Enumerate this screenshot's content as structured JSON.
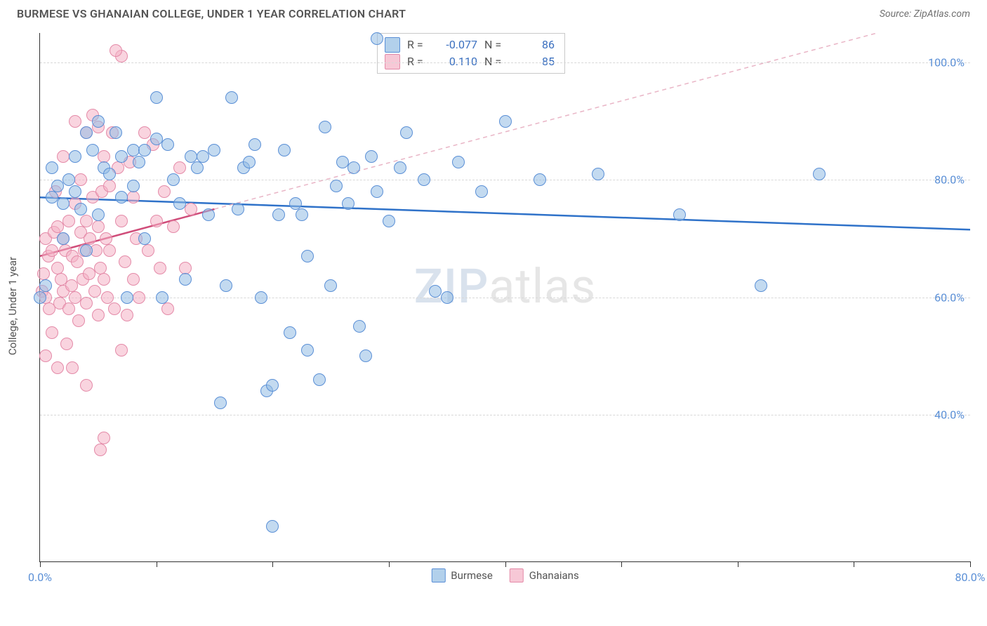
{
  "header": {
    "title": "BURMESE VS GHANAIAN COLLEGE, UNDER 1 YEAR CORRELATION CHART",
    "source": "Source: ZipAtlas.com"
  },
  "chart": {
    "type": "scatter",
    "y_label": "College, Under 1 year",
    "xlim": [
      0,
      80
    ],
    "ylim": [
      15,
      105
    ],
    "x_ticks": [
      0,
      10,
      20,
      30,
      40,
      50,
      60,
      70,
      80
    ],
    "x_tick_labels": {
      "0": "0.0%",
      "80": "80.0%"
    },
    "y_ticks": [
      40,
      60,
      80,
      100
    ],
    "y_tick_labels": {
      "40": "40.0%",
      "60": "60.0%",
      "80": "80.0%",
      "100": "100.0%"
    },
    "grid_color": "#d8d8d8",
    "background_color": "#ffffff",
    "axis_color": "#333333",
    "watermark": {
      "zip": "ZIP",
      "atlas": "atlas"
    },
    "series": [
      {
        "name": "Burmese",
        "color_fill": "rgba(146,188,227,0.55)",
        "color_stroke": "#5a8fd6",
        "marker_size": 18,
        "regression": {
          "y_at_x0": 77,
          "y_at_x80": 71.5,
          "stroke": "#2f72c9",
          "width": 2.5,
          "dash": null
        },
        "r": "-0.077",
        "n": "86",
        "points": [
          [
            0,
            60
          ],
          [
            0.5,
            62
          ],
          [
            1,
            77
          ],
          [
            1,
            82
          ],
          [
            1.5,
            79
          ],
          [
            2,
            70
          ],
          [
            2,
            76
          ],
          [
            2.5,
            80
          ],
          [
            3,
            78
          ],
          [
            3,
            84
          ],
          [
            3.5,
            75
          ],
          [
            4,
            68
          ],
          [
            4,
            88
          ],
          [
            4.5,
            85
          ],
          [
            5,
            90
          ],
          [
            5,
            74
          ],
          [
            5.5,
            82
          ],
          [
            6,
            81
          ],
          [
            6.5,
            88
          ],
          [
            7,
            77
          ],
          [
            7,
            84
          ],
          [
            7.5,
            60
          ],
          [
            8,
            79
          ],
          [
            8,
            85
          ],
          [
            8.5,
            83
          ],
          [
            9,
            70
          ],
          [
            9,
            85
          ],
          [
            10,
            94
          ],
          [
            10,
            87
          ],
          [
            10.5,
            60
          ],
          [
            11,
            86
          ],
          [
            11.5,
            80
          ],
          [
            12,
            76
          ],
          [
            12.5,
            63
          ],
          [
            13,
            84
          ],
          [
            13.5,
            82
          ],
          [
            14,
            84
          ],
          [
            14.5,
            74
          ],
          [
            15,
            85
          ],
          [
            15.5,
            42
          ],
          [
            16,
            62
          ],
          [
            16.5,
            94
          ],
          [
            17,
            75
          ],
          [
            17.5,
            82
          ],
          [
            18,
            83
          ],
          [
            18.5,
            86
          ],
          [
            19,
            60
          ],
          [
            19.5,
            44
          ],
          [
            20,
            45
          ],
          [
            20.5,
            74
          ],
          [
            21,
            85
          ],
          [
            21.5,
            54
          ],
          [
            22,
            76
          ],
          [
            22.5,
            74
          ],
          [
            23,
            51
          ],
          [
            23,
            67
          ],
          [
            24,
            46
          ],
          [
            24.5,
            89
          ],
          [
            25,
            62
          ],
          [
            25.5,
            79
          ],
          [
            26,
            83
          ],
          [
            26.5,
            76
          ],
          [
            27,
            82
          ],
          [
            27.5,
            55
          ],
          [
            28,
            50
          ],
          [
            28.5,
            84
          ],
          [
            29,
            78
          ],
          [
            30,
            73
          ],
          [
            31,
            82
          ],
          [
            31.5,
            88
          ],
          [
            33,
            80
          ],
          [
            34,
            61
          ],
          [
            35,
            60
          ],
          [
            36,
            83
          ],
          [
            38,
            78
          ],
          [
            40,
            90
          ],
          [
            43,
            80
          ],
          [
            48,
            81
          ],
          [
            55,
            74
          ],
          [
            62,
            62
          ],
          [
            67,
            81
          ],
          [
            20,
            21
          ],
          [
            29,
            104
          ]
        ]
      },
      {
        "name": "Ghanaians",
        "color_fill": "rgba(244,176,196,0.55)",
        "color_stroke": "#e48aa8",
        "marker_size": 18,
        "regression_solid": {
          "y_at_x0": 67,
          "y_at_x15": 75,
          "stroke": "#d04d7a",
          "width": 2.5
        },
        "regression_dashed": {
          "x0": 15,
          "y0": 75,
          "x1": 72,
          "y1": 105,
          "stroke": "#e9b5c6",
          "width": 1.5,
          "dash": "6 5"
        },
        "r": "0.110",
        "n": "85",
        "points": [
          [
            0.2,
            61
          ],
          [
            0.3,
            64
          ],
          [
            0.5,
            60
          ],
          [
            0.5,
            70
          ],
          [
            0.7,
            67
          ],
          [
            0.8,
            58
          ],
          [
            1,
            54
          ],
          [
            1,
            68
          ],
          [
            1.2,
            71
          ],
          [
            1.3,
            78
          ],
          [
            1.5,
            65
          ],
          [
            1.5,
            72
          ],
          [
            1.7,
            59
          ],
          [
            1.8,
            63
          ],
          [
            2,
            61
          ],
          [
            2,
            70
          ],
          [
            2,
            84
          ],
          [
            2.2,
            68
          ],
          [
            2.3,
            52
          ],
          [
            2.5,
            58
          ],
          [
            2.5,
            73
          ],
          [
            2.7,
            62
          ],
          [
            2.8,
            67
          ],
          [
            3,
            60
          ],
          [
            3,
            76
          ],
          [
            3,
            90
          ],
          [
            3.2,
            66
          ],
          [
            3.3,
            56
          ],
          [
            3.5,
            71
          ],
          [
            3.5,
            80
          ],
          [
            3.7,
            63
          ],
          [
            3.8,
            68
          ],
          [
            4,
            59
          ],
          [
            4,
            73
          ],
          [
            4,
            88
          ],
          [
            4.2,
            64
          ],
          [
            4.3,
            70
          ],
          [
            4.5,
            77
          ],
          [
            4.5,
            91
          ],
          [
            4.7,
            61
          ],
          [
            4.8,
            68
          ],
          [
            5,
            57
          ],
          [
            5,
            72
          ],
          [
            5,
            89
          ],
          [
            5.2,
            65
          ],
          [
            5.3,
            78
          ],
          [
            5.5,
            63
          ],
          [
            5.5,
            84
          ],
          [
            5.7,
            70
          ],
          [
            5.8,
            60
          ],
          [
            6,
            68
          ],
          [
            6,
            79
          ],
          [
            6.2,
            88
          ],
          [
            6.4,
            58
          ],
          [
            6.7,
            82
          ],
          [
            7,
            51
          ],
          [
            7,
            101
          ],
          [
            7,
            73
          ],
          [
            7.3,
            66
          ],
          [
            7.5,
            57
          ],
          [
            7.7,
            83
          ],
          [
            8,
            63
          ],
          [
            8,
            77
          ],
          [
            8.3,
            70
          ],
          [
            8.5,
            60
          ],
          [
            9,
            88
          ],
          [
            9.3,
            68
          ],
          [
            9.7,
            86
          ],
          [
            10,
            73
          ],
          [
            10.3,
            65
          ],
          [
            10.7,
            78
          ],
          [
            11,
            58
          ],
          [
            11.5,
            72
          ],
          [
            12,
            82
          ],
          [
            12.5,
            65
          ],
          [
            13,
            75
          ],
          [
            6.5,
            102
          ],
          [
            2.8,
            48
          ],
          [
            0.5,
            50
          ],
          [
            1.5,
            48
          ],
          [
            5.2,
            34
          ],
          [
            5.5,
            36
          ],
          [
            4,
            45
          ]
        ]
      }
    ],
    "legend_box": {
      "rows": [
        {
          "swatch": "blue",
          "r_label": "R =",
          "r": "-0.077",
          "n_label": "N =",
          "n": "86"
        },
        {
          "swatch": "pink",
          "r_label": "R =",
          "r": "0.110",
          "n_label": "N =",
          "n": "85"
        }
      ]
    },
    "bottom_legend": [
      {
        "swatch": "blue",
        "label": "Burmese"
      },
      {
        "swatch": "pink",
        "label": "Ghanaians"
      }
    ]
  }
}
